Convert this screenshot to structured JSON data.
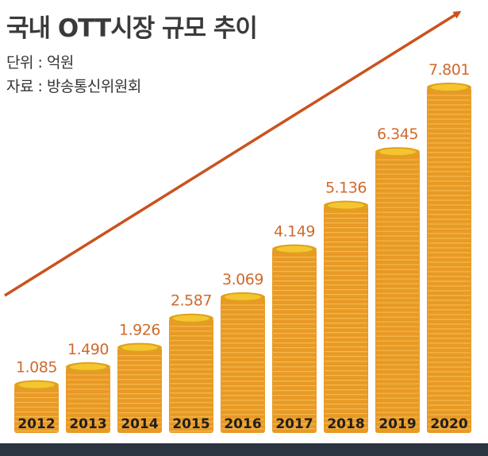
{
  "title": "국내 OTT시장 규모 추이",
  "unit_label": "단위 : 억원",
  "source_label": "자료 : 방송통신위원회",
  "colors": {
    "coin_top": "#f4c531",
    "coin_rim": "#e0a21a",
    "coin_side": "#e89a26",
    "coin_ridge": "#f6b84a",
    "arrow": "#c9531d",
    "value_text": "#cf6a2c",
    "baseline": "#2b3541"
  },
  "chart_data": {
    "type": "bar",
    "categories": [
      "2012",
      "2013",
      "2014",
      "2015",
      "2016",
      "2017",
      "2018",
      "2019",
      "2020"
    ],
    "values": [
      1085,
      1490,
      1926,
      2587,
      3069,
      4149,
      5136,
      6345,
      7801
    ],
    "value_labels": [
      "1.085",
      "1.490",
      "1.926",
      "2.587",
      "3.069",
      "4.149",
      "5.136",
      "6.345",
      "7.801"
    ],
    "title": "국내 OTT시장 규모 추이",
    "unit": "단위 : 억원",
    "source": "자료 : 방송통신위원회",
    "xlabel": "",
    "ylabel": "",
    "trend_arrow": true
  }
}
